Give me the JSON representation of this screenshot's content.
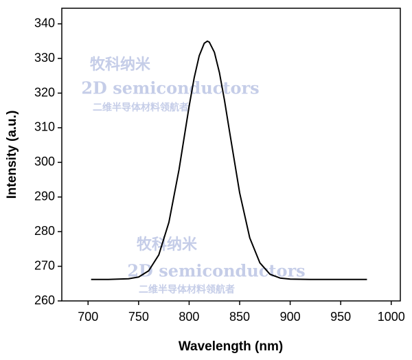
{
  "chart_data": {
    "type": "line",
    "x_label": "Wavelength (nm)",
    "y_label": "Intensity (a.u.)",
    "watermark": [
      "牧科纳米",
      "2D semiconductors",
      "二维半导体材料领航者"
    ],
    "x": [
      703,
      720,
      740,
      750,
      760,
      770,
      780,
      790,
      800,
      805,
      810,
      815,
      818,
      820,
      825,
      830,
      835,
      840,
      850,
      860,
      870,
      880,
      890,
      900,
      920,
      950,
      976
    ],
    "values": [
      266.2,
      266.2,
      266.4,
      266.9,
      268.7,
      273.3,
      282.7,
      297.9,
      316.2,
      324.4,
      330.8,
      334.4,
      335.0,
      334.7,
      331.8,
      325.9,
      317.9,
      308.9,
      291.2,
      278.2,
      271.0,
      267.7,
      266.6,
      266.3,
      266.2,
      266.2,
      266.2
    ],
    "color": "#000000",
    "xlim": [
      674,
      1009
    ],
    "xticks": [
      700,
      750,
      800,
      850,
      900,
      950,
      1000
    ],
    "ylim": [
      260,
      344.5
    ],
    "yticks": [
      260,
      270,
      280,
      290,
      300,
      310,
      320,
      330,
      340
    ]
  }
}
